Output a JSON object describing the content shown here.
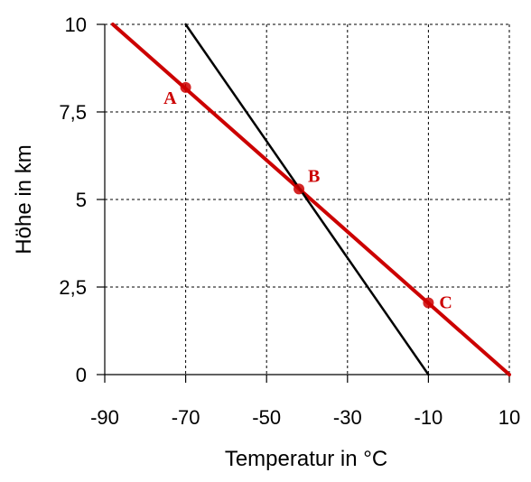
{
  "chart_data": {
    "type": "line",
    "xlabel": "Temperatur in °C",
    "ylabel": "Höhe in km",
    "xlim": [
      -90,
      10
    ],
    "ylim": [
      0,
      10
    ],
    "x_ticks": [
      -90,
      -70,
      -50,
      -30,
      -10,
      10
    ],
    "x_tick_labels": [
      "-90",
      "-70",
      "-50",
      "-30",
      "-10",
      "10"
    ],
    "y_ticks": [
      0,
      2.5,
      5,
      7.5,
      10
    ],
    "y_tick_labels": [
      "0",
      "2,5",
      "5",
      "7,5",
      "10"
    ],
    "x_grid": [
      -90,
      -70,
      -50,
      -30,
      -10,
      10
    ],
    "y_grid": [
      0,
      2.5,
      5,
      7.5,
      10
    ],
    "grid": true,
    "colors": {
      "red": "#cc0000",
      "black": "#000000"
    },
    "series": [
      {
        "color": "#cc0000",
        "x": [
          -88,
          10
        ],
        "y": [
          10,
          0
        ]
      },
      {
        "color": "#000000",
        "x": [
          -70,
          -10
        ],
        "y": [
          10,
          0
        ]
      }
    ],
    "points": [
      {
        "label": "A",
        "x": -70,
        "y": 8.2
      },
      {
        "label": "B",
        "x": -42,
        "y": 5.3
      },
      {
        "label": "C",
        "x": -10,
        "y": 2.05
      }
    ]
  }
}
